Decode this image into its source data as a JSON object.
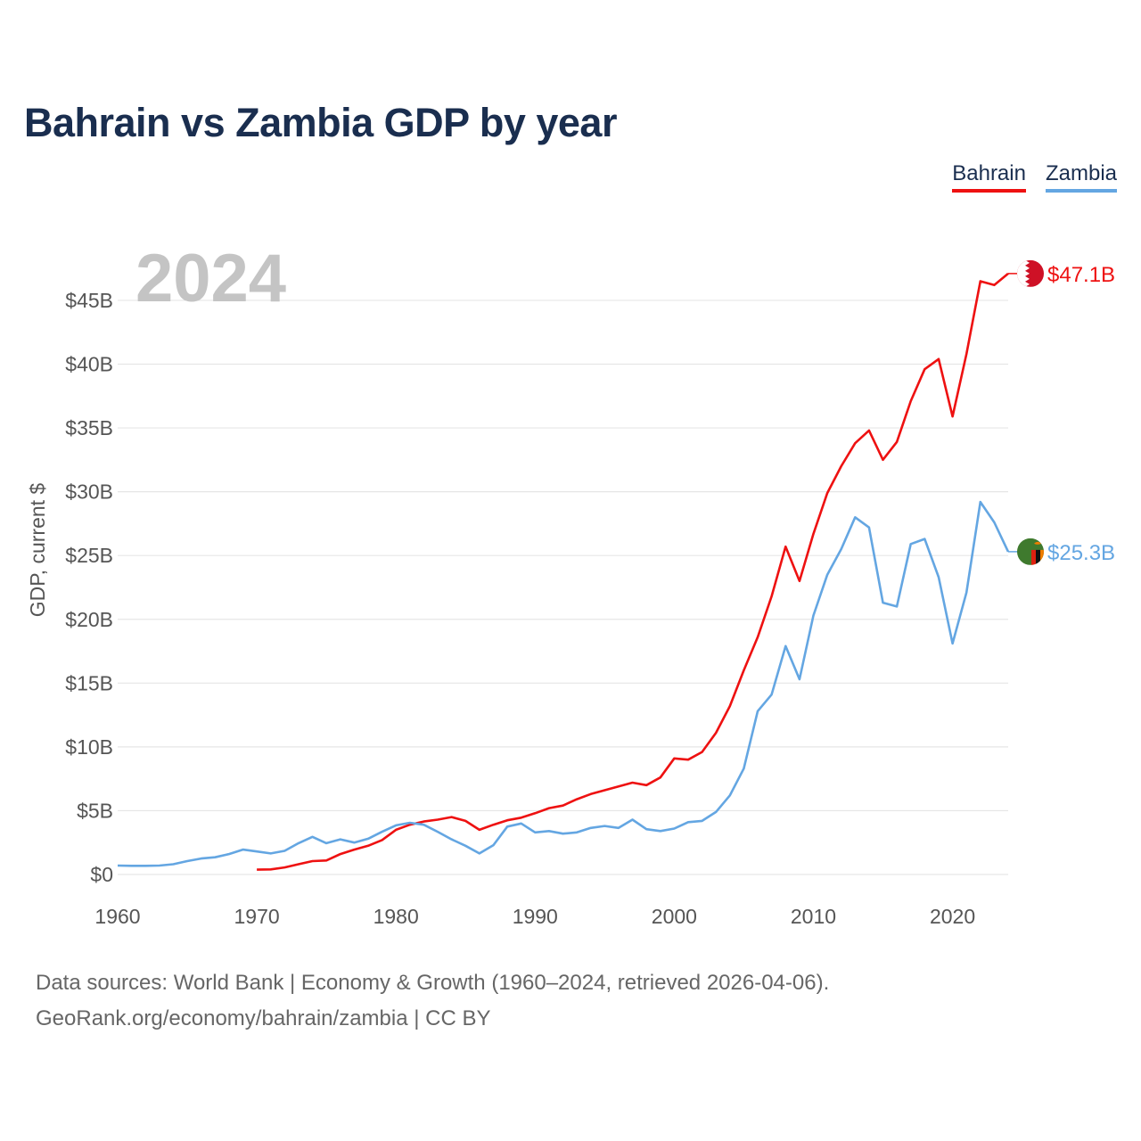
{
  "header": {
    "title": "Bahrain vs Zambia GDP by year"
  },
  "legend": [
    {
      "label": "Bahrain",
      "color": "#ee1111"
    },
    {
      "label": "Zambia",
      "color": "#64a6e2"
    }
  ],
  "chart_data": {
    "type": "line",
    "title": "Bahrain vs Zambia GDP by year",
    "year_label": "2024",
    "ylabel": "GDP, current $",
    "xlabel": "",
    "ylim": [
      0,
      48
    ],
    "xlim": [
      1960,
      2024
    ],
    "y_ticks": [
      0,
      5,
      10,
      15,
      20,
      25,
      30,
      35,
      40,
      45
    ],
    "y_tick_labels": [
      "$0",
      "$5B",
      "$10B",
      "$15B",
      "$20B",
      "$25B",
      "$30B",
      "$35B",
      "$40B",
      "$45B"
    ],
    "x_ticks": [
      1960,
      1970,
      1980,
      1990,
      2000,
      2010,
      2020
    ],
    "x_tick_labels": [
      "1960",
      "1970",
      "1980",
      "1990",
      "2000",
      "2010",
      "2020"
    ],
    "grid": true,
    "units": "billions of current US$",
    "series": [
      {
        "name": "Bahrain",
        "color": "#ee1111",
        "end_label": "$47.1B",
        "flag": "bahrain-flag",
        "x": [
          1970,
          1971,
          1972,
          1973,
          1974,
          1975,
          1976,
          1977,
          1978,
          1979,
          1980,
          1981,
          1982,
          1983,
          1984,
          1985,
          1986,
          1987,
          1988,
          1989,
          1990,
          1991,
          1992,
          1993,
          1994,
          1995,
          1996,
          1997,
          1998,
          1999,
          2000,
          2001,
          2002,
          2003,
          2004,
          2005,
          2006,
          2007,
          2008,
          2009,
          2010,
          2011,
          2012,
          2013,
          2014,
          2015,
          2016,
          2017,
          2018,
          2019,
          2020,
          2021,
          2022,
          2023,
          2024
        ],
        "values": [
          0.38,
          0.4,
          0.55,
          0.8,
          1.05,
          1.1,
          1.6,
          1.95,
          2.25,
          2.7,
          3.5,
          3.9,
          4.15,
          4.3,
          4.5,
          4.2,
          3.5,
          3.9,
          4.25,
          4.45,
          4.8,
          5.2,
          5.4,
          5.9,
          6.3,
          6.6,
          6.9,
          7.2,
          7.0,
          7.6,
          9.1,
          9.0,
          9.6,
          11.1,
          13.2,
          16.0,
          18.6,
          21.8,
          25.7,
          23.0,
          26.7,
          29.9,
          32.0,
          33.8,
          34.8,
          32.5,
          33.9,
          37.1,
          39.6,
          40.4,
          35.9,
          40.8,
          46.5,
          46.2,
          47.1
        ]
      },
      {
        "name": "Zambia",
        "color": "#64a6e2",
        "end_label": "$25.3B",
        "flag": "zambia-flag",
        "x": [
          1960,
          1961,
          1962,
          1963,
          1964,
          1965,
          1966,
          1967,
          1968,
          1969,
          1970,
          1971,
          1972,
          1973,
          1974,
          1975,
          1976,
          1977,
          1978,
          1979,
          1980,
          1981,
          1982,
          1983,
          1984,
          1985,
          1986,
          1987,
          1988,
          1989,
          1990,
          1991,
          1992,
          1993,
          1994,
          1995,
          1996,
          1997,
          1998,
          1999,
          2000,
          2001,
          2002,
          2003,
          2004,
          2005,
          2006,
          2007,
          2008,
          2009,
          2010,
          2011,
          2012,
          2013,
          2014,
          2015,
          2016,
          2017,
          2018,
          2019,
          2020,
          2021,
          2022,
          2023,
          2024
        ],
        "values": [
          0.7,
          0.68,
          0.68,
          0.7,
          0.8,
          1.05,
          1.25,
          1.35,
          1.6,
          1.95,
          1.8,
          1.65,
          1.85,
          2.45,
          2.95,
          2.45,
          2.75,
          2.5,
          2.8,
          3.35,
          3.85,
          4.05,
          3.9,
          3.35,
          2.75,
          2.25,
          1.65,
          2.3,
          3.75,
          4.0,
          3.3,
          3.4,
          3.2,
          3.3,
          3.65,
          3.8,
          3.65,
          4.3,
          3.55,
          3.4,
          3.6,
          4.1,
          4.2,
          4.9,
          6.2,
          8.3,
          12.8,
          14.1,
          17.9,
          15.3,
          20.3,
          23.5,
          25.5,
          28.0,
          27.2,
          21.3,
          21.0,
          25.9,
          26.3,
          23.3,
          18.1,
          22.1,
          29.2,
          27.6,
          25.3
        ]
      }
    ]
  },
  "footer": {
    "line1": "Data sources: World Bank | Economy & Growth (1960–2024, retrieved 2026-04-06).",
    "line2": "GeoRank.org/economy/bahrain/zambia | CC BY"
  }
}
